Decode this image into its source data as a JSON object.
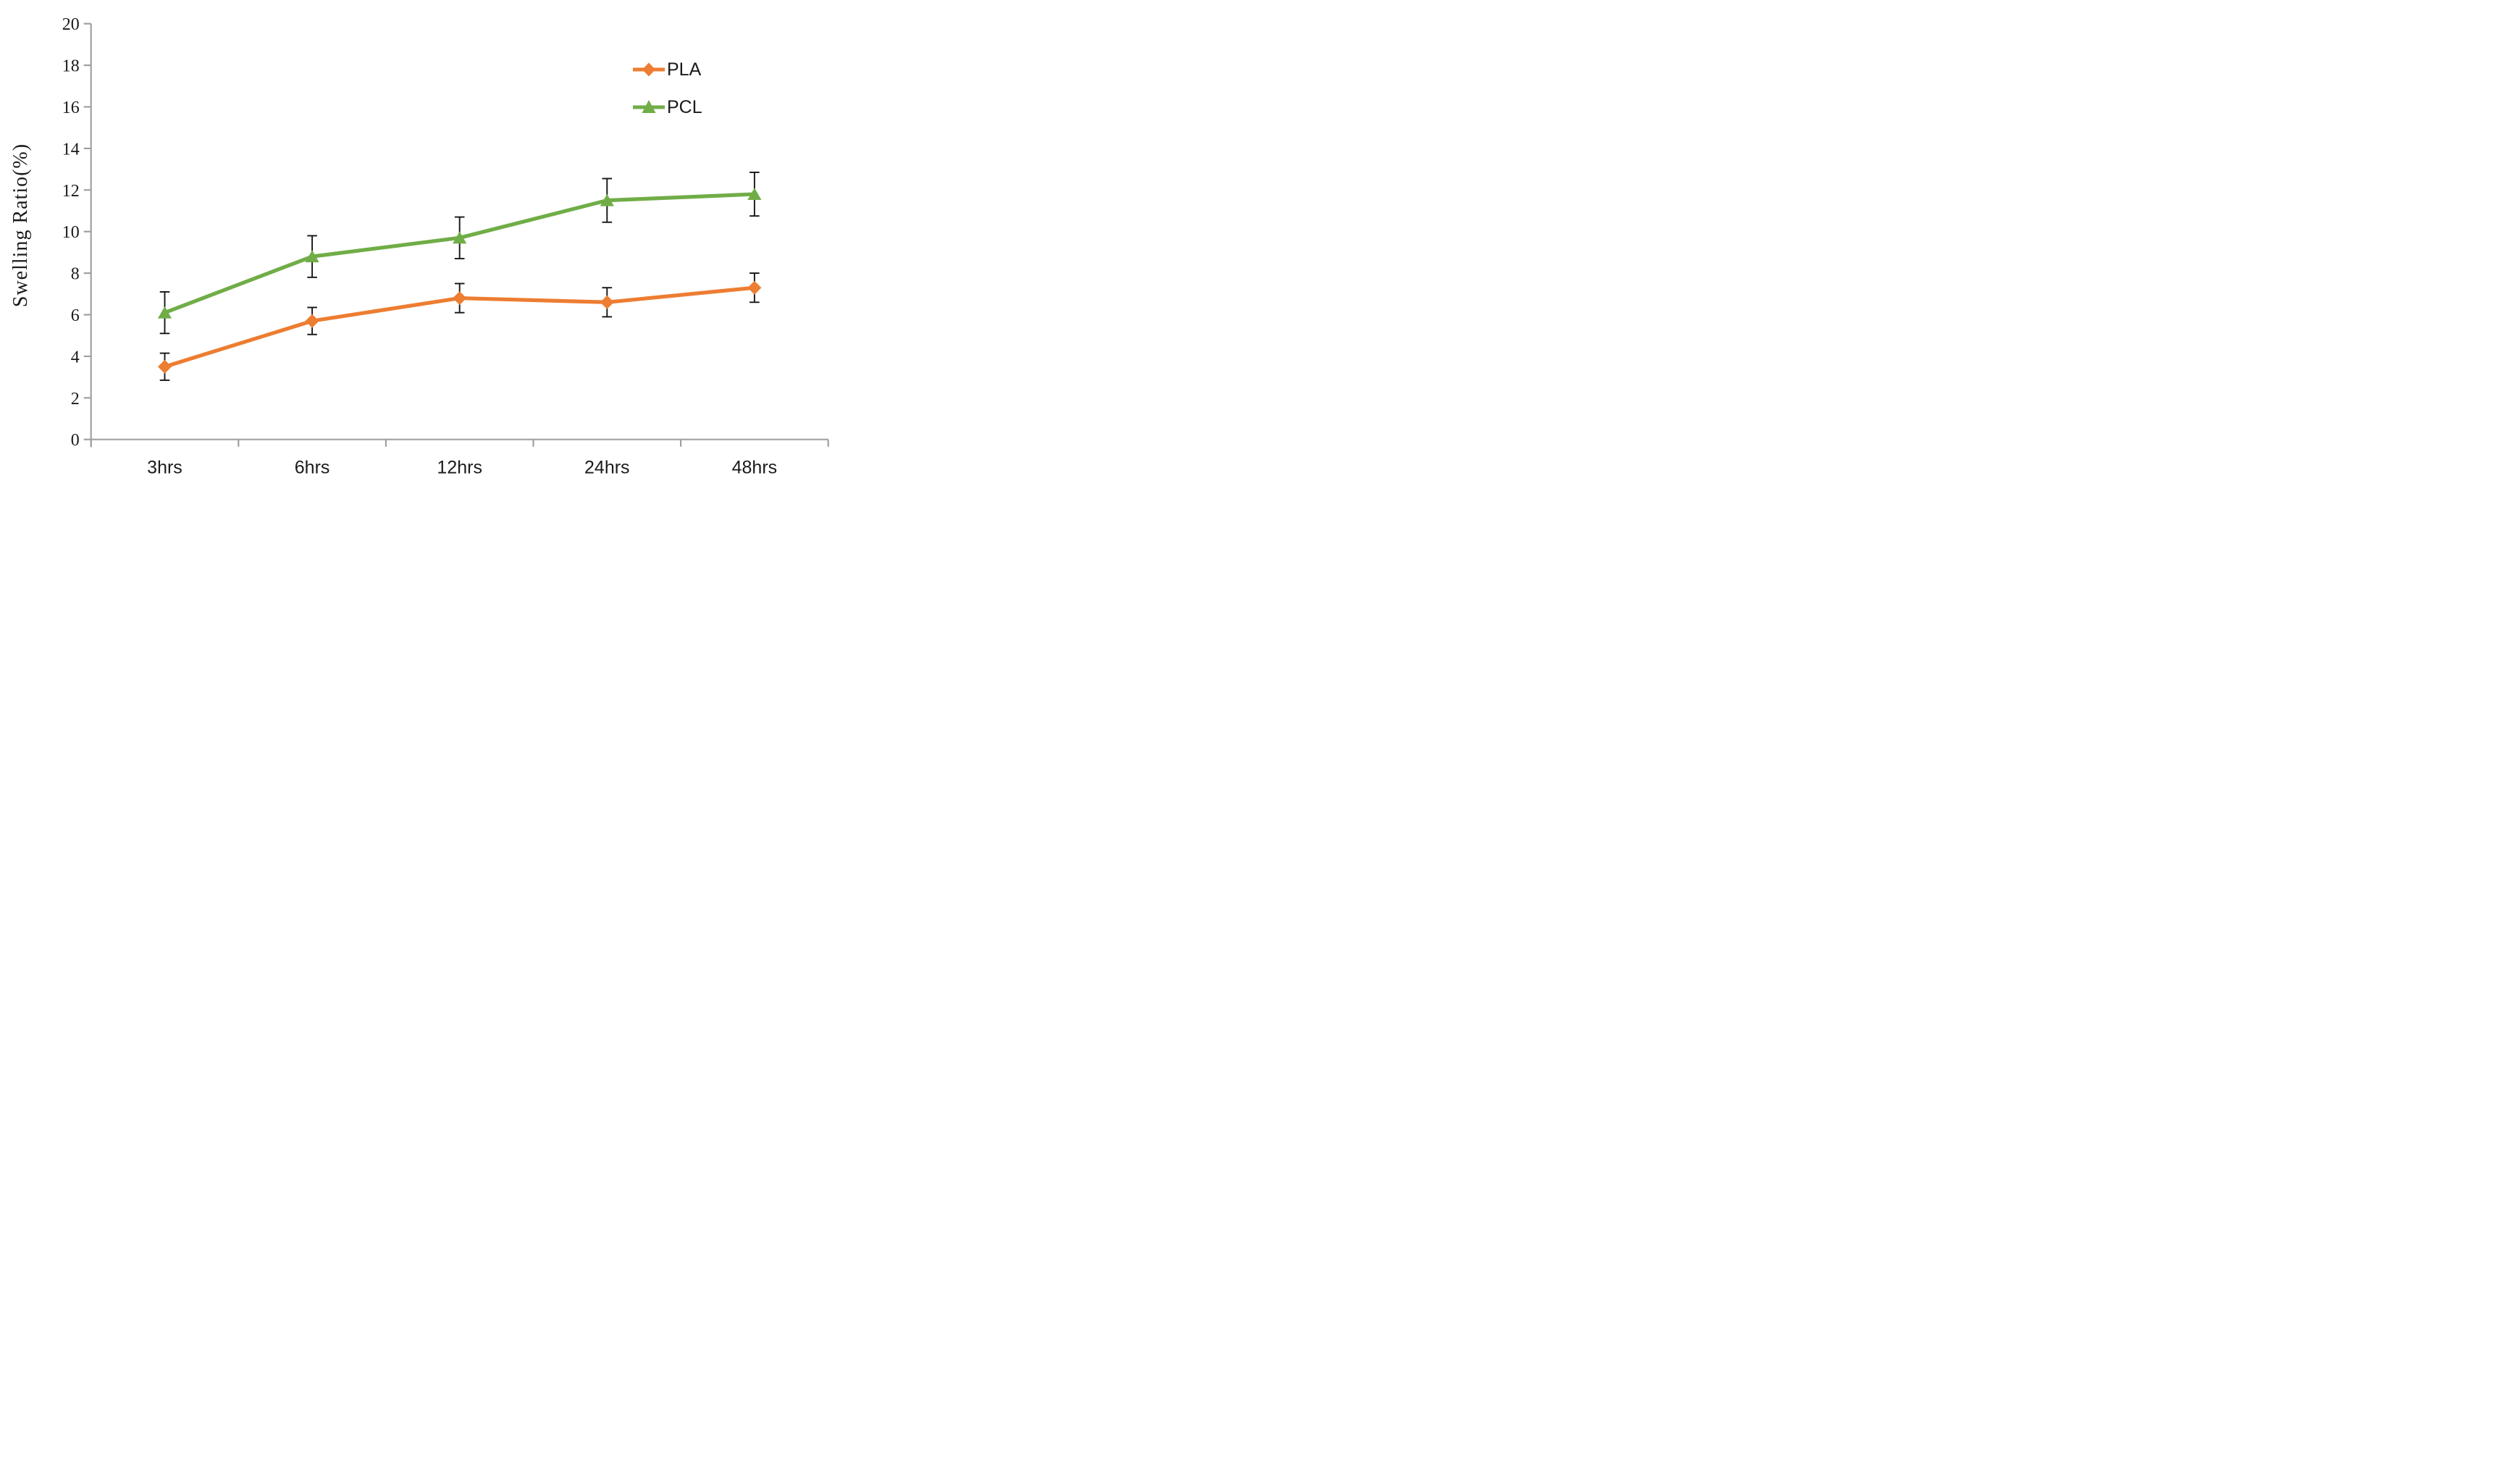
{
  "chart_data": {
    "type": "line",
    "title": "",
    "xlabel": "",
    "ylabel": "Swelling Ratio(%)",
    "ylim": [
      0,
      20
    ],
    "ytick_step": 2,
    "grid": false,
    "legend_position": "upper-right",
    "categories": [
      "3hrs",
      "6hrs",
      "12hrs",
      "24hrs",
      "48hrs"
    ],
    "series": [
      {
        "name": "PLA",
        "color": "#ED7D31",
        "marker": "diamond",
        "values": [
          3.5,
          5.7,
          6.8,
          6.6,
          7.3
        ],
        "errors": [
          0.65,
          0.65,
          0.7,
          0.7,
          0.7
        ]
      },
      {
        "name": "PCL",
        "color": "#70AD47",
        "marker": "triangle",
        "values": [
          6.1,
          8.8,
          9.7,
          11.5,
          11.8
        ],
        "errors": [
          1.0,
          1.0,
          1.0,
          1.05,
          1.05
        ]
      }
    ],
    "axis_color": "#A0A0A0",
    "error_bar_color": "#151515",
    "background": "#FFFFFF"
  }
}
